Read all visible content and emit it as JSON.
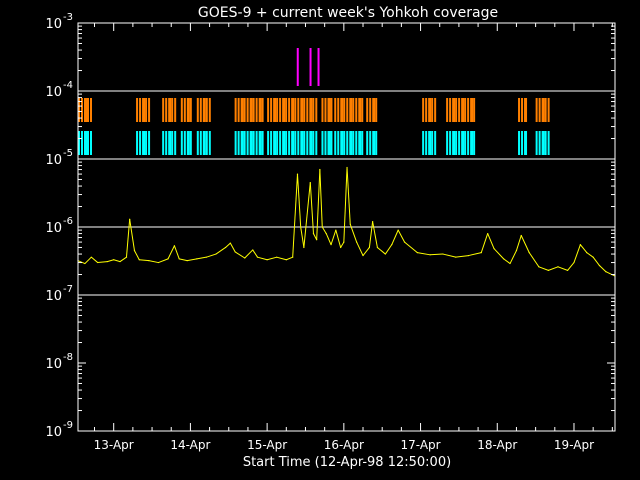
{
  "chart_data": {
    "type": "line",
    "title": "GOES-9 + current week's Yohkoh coverage",
    "xlabel": "Start Time (12-Apr-98 12:50:00)",
    "ylabel": "",
    "y_scale": "log",
    "ylim": [
      1e-09,
      0.001
    ],
    "xlim": [
      "1998-04-12T12:50",
      "1998-04-19T12:50"
    ],
    "grid": "horizontal lines at each decade from 1e-7 to 1e-4",
    "x_ticks": [
      {
        "label": "13-Apr",
        "t": "1998-04-13T00:00"
      },
      {
        "label": "14-Apr",
        "t": "1998-04-14T00:00"
      },
      {
        "label": "15-Apr",
        "t": "1998-04-15T00:00"
      },
      {
        "label": "16-Apr",
        "t": "1998-04-16T00:00"
      },
      {
        "label": "17-Apr",
        "t": "1998-04-17T00:00"
      },
      {
        "label": "18-Apr",
        "t": "1998-04-18T00:00"
      },
      {
        "label": "19-Apr",
        "t": "1998-04-19T00:00"
      }
    ],
    "y_ticks": [
      {
        "value": 1e-09,
        "mantissa": "10",
        "exponent": "-9"
      },
      {
        "value": 1e-08,
        "mantissa": "10",
        "exponent": "-8"
      },
      {
        "value": 1e-07,
        "mantissa": "10",
        "exponent": "-7"
      },
      {
        "value": 1e-06,
        "mantissa": "10",
        "exponent": "-6"
      },
      {
        "value": 1e-05,
        "mantissa": "10",
        "exponent": "-5"
      },
      {
        "value": 0.0001,
        "mantissa": "10",
        "exponent": "-4"
      },
      {
        "value": 0.001,
        "mantissa": "10",
        "exponent": "-3"
      }
    ],
    "colors": {
      "flux": "#ffff00",
      "bars_top": "#ff00ff",
      "bars_mid": "#ff8000",
      "bars_low": "#00ffff",
      "grid": "#ffffff",
      "axes": "#ffffff"
    },
    "series": [
      {
        "points": [
          [
            "1998-04-12T12:50",
            3.2e-07
          ],
          [
            "1998-04-12T15:00",
            2.9e-07
          ],
          [
            "1998-04-12T17:00",
            3.6e-07
          ],
          [
            "1998-04-12T19:00",
            3e-07
          ],
          [
            "1998-04-12T22:00",
            3.1e-07
          ],
          [
            "1998-04-13T00:00",
            3.3e-07
          ],
          [
            "1998-04-13T02:00",
            3.1e-07
          ],
          [
            "1998-04-13T04:00",
            3.6e-07
          ],
          [
            "1998-04-13T05:00",
            1.3e-06
          ],
          [
            "1998-04-13T06:30",
            4.5e-07
          ],
          [
            "1998-04-13T08:00",
            3.3e-07
          ],
          [
            "1998-04-13T11:00",
            3.2e-07
          ],
          [
            "1998-04-13T14:00",
            3e-07
          ],
          [
            "1998-04-13T17:00",
            3.4e-07
          ],
          [
            "1998-04-13T19:00",
            5.3e-07
          ],
          [
            "1998-04-13T20:30",
            3.4e-07
          ],
          [
            "1998-04-13T23:00",
            3.2e-07
          ],
          [
            "1998-04-14T02:00",
            3.4e-07
          ],
          [
            "1998-04-14T05:00",
            3.6e-07
          ],
          [
            "1998-04-14T08:00",
            4e-07
          ],
          [
            "1998-04-14T11:00",
            5e-07
          ],
          [
            "1998-04-14T12:30",
            5.8e-07
          ],
          [
            "1998-04-14T14:00",
            4.3e-07
          ],
          [
            "1998-04-14T17:00",
            3.5e-07
          ],
          [
            "1998-04-14T19:30",
            4.6e-07
          ],
          [
            "1998-04-14T21:00",
            3.6e-07
          ],
          [
            "1998-04-15T00:00",
            3.3e-07
          ],
          [
            "1998-04-15T03:00",
            3.6e-07
          ],
          [
            "1998-04-15T06:00",
            3.3e-07
          ],
          [
            "1998-04-15T08:00",
            3.6e-07
          ],
          [
            "1998-04-15T09:30",
            6e-06
          ],
          [
            "1998-04-15T10:30",
            1e-06
          ],
          [
            "1998-04-15T11:30",
            5e-07
          ],
          [
            "1998-04-15T13:30",
            4.5e-06
          ],
          [
            "1998-04-15T14:30",
            8e-07
          ],
          [
            "1998-04-15T15:30",
            6.5e-07
          ],
          [
            "1998-04-15T16:30",
            7e-06
          ],
          [
            "1998-04-15T17:15",
            1e-06
          ],
          [
            "1998-04-15T18:30",
            8e-07
          ],
          [
            "1998-04-15T20:00",
            5.5e-07
          ],
          [
            "1998-04-15T21:30",
            9e-07
          ],
          [
            "1998-04-15T23:00",
            5e-07
          ],
          [
            "1998-04-16T00:00",
            6e-07
          ],
          [
            "1998-04-16T01:00",
            7.5e-06
          ],
          [
            "1998-04-16T02:00",
            1.1e-06
          ],
          [
            "1998-04-16T04:00",
            6e-07
          ],
          [
            "1998-04-16T06:00",
            3.8e-07
          ],
          [
            "1998-04-16T08:00",
            5e-07
          ],
          [
            "1998-04-16T09:00",
            1.2e-06
          ],
          [
            "1998-04-16T10:30",
            5e-07
          ],
          [
            "1998-04-16T13:00",
            4e-07
          ],
          [
            "1998-04-16T15:00",
            5.5e-07
          ],
          [
            "1998-04-16T17:00",
            9e-07
          ],
          [
            "1998-04-16T19:00",
            6e-07
          ],
          [
            "1998-04-16T23:00",
            4.2e-07
          ],
          [
            "1998-04-17T03:00",
            3.9e-07
          ],
          [
            "1998-04-17T07:00",
            4e-07
          ],
          [
            "1998-04-17T11:00",
            3.6e-07
          ],
          [
            "1998-04-17T15:00",
            3.8e-07
          ],
          [
            "1998-04-17T19:00",
            4.2e-07
          ],
          [
            "1998-04-17T21:00",
            8e-07
          ],
          [
            "1998-04-17T23:00",
            4.8e-07
          ],
          [
            "1998-04-18T02:00",
            3.4e-07
          ],
          [
            "1998-04-18T04:00",
            2.9e-07
          ],
          [
            "1998-04-18T06:00",
            4.5e-07
          ],
          [
            "1998-04-18T07:30",
            7.5e-07
          ],
          [
            "1998-04-18T10:00",
            4.2e-07
          ],
          [
            "1998-04-18T13:00",
            2.6e-07
          ],
          [
            "1998-04-18T16:00",
            2.3e-07
          ],
          [
            "1998-04-18T19:00",
            2.6e-07
          ],
          [
            "1998-04-18T22:00",
            2.3e-07
          ],
          [
            "1998-04-19T00:00",
            3e-07
          ],
          [
            "1998-04-19T02:00",
            5.5e-07
          ],
          [
            "1998-04-19T04:00",
            4.2e-07
          ],
          [
            "1998-04-19T06:00",
            3.6e-07
          ],
          [
            "1998-04-19T08:00",
            2.7e-07
          ],
          [
            "1998-04-19T10:00",
            2.2e-07
          ],
          [
            "1998-04-19T12:50",
            1.9e-07
          ]
        ]
      }
    ],
    "coverage": {
      "top": [
        [
          "1998-04-15T09:20",
          "1998-04-15T09:50"
        ],
        [
          "1998-04-15T13:20",
          "1998-04-15T13:50"
        ],
        [
          "1998-04-15T15:50",
          "1998-04-15T16:20"
        ]
      ],
      "orbit_segments": [
        [
          "1998-04-12T12:50",
          "1998-04-12T17:30"
        ],
        [
          "1998-04-13T07:00",
          "1998-04-13T11:30"
        ],
        [
          "1998-04-13T15:10",
          "1998-04-13T19:30"
        ],
        [
          "1998-04-13T21:00",
          "1998-04-14T00:30"
        ],
        [
          "1998-04-14T02:00",
          "1998-04-14T06:30"
        ],
        [
          "1998-04-14T13:50",
          "1998-04-14T22:30"
        ],
        [
          "1998-04-15T00:00",
          "1998-04-15T08:00"
        ],
        [
          "1998-04-15T08:30",
          "1998-04-15T16:00"
        ],
        [
          "1998-04-15T17:00",
          "1998-04-15T20:00"
        ],
        [
          "1998-04-15T21:00",
          "1998-04-16T05:30"
        ],
        [
          "1998-04-16T07:00",
          "1998-04-16T10:00"
        ],
        [
          "1998-04-17T00:30",
          "1998-04-17T05:00"
        ],
        [
          "1998-04-17T08:00",
          "1998-04-17T17:00"
        ],
        [
          "1998-04-18T06:30",
          "1998-04-18T08:30"
        ],
        [
          "1998-04-18T12:00",
          "1998-04-18T16:30"
        ]
      ]
    }
  }
}
